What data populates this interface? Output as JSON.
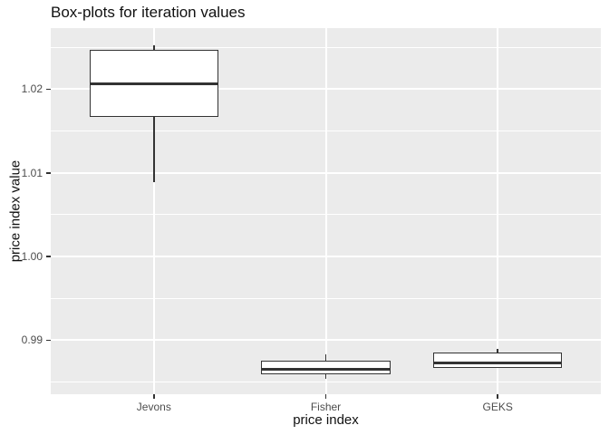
{
  "chart_data": {
    "type": "boxplot",
    "title": "Box-plots for iteration values",
    "xlabel": "price index",
    "ylabel": "price index value",
    "categories": [
      "Jevons",
      "Fisher",
      "GEKS"
    ],
    "y_ticks": [
      0.99,
      1.0,
      1.01,
      1.02
    ],
    "y_tick_labels": [
      "0.99",
      "1.00",
      "1.01",
      "1.02"
    ],
    "y_minor_ticks": [
      0.985,
      0.995,
      1.005,
      1.015,
      1.025
    ],
    "ylim": [
      0.98355,
      1.0273
    ],
    "grid": true,
    "legend": "none",
    "series": [
      {
        "category": "Jevons",
        "whisker_low": 1.0089,
        "q1": 1.0167,
        "median": 1.0206,
        "q3": 1.0247,
        "whisker_high": 1.0252
      },
      {
        "category": "Fisher",
        "whisker_low": 0.9854,
        "q1": 0.9859,
        "median": 0.9865,
        "q3": 0.9876,
        "whisker_high": 0.9883
      },
      {
        "category": "GEKS",
        "whisker_low": 0.9867,
        "q1": 0.9867,
        "median": 0.9873,
        "q3": 0.9885,
        "whisker_high": 0.989
      }
    ]
  },
  "style": {
    "panel_bg": "#EBEBEB",
    "grid_color": "#FFFFFF",
    "box_fill": "#FFFFFF",
    "box_border": "#333333",
    "median_color": "#333333",
    "tick_color": "#333333",
    "tick_label_color": "#4D4D4D",
    "text_color": "#111111"
  }
}
